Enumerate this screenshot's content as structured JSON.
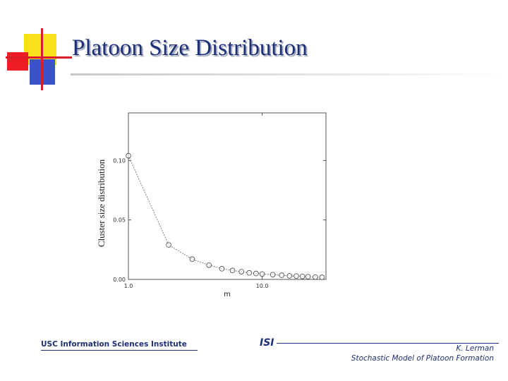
{
  "slide": {
    "title": "Platoon Size Distribution"
  },
  "footer": {
    "institute": "USC Information Sciences Institute",
    "logo": "ISI",
    "author": "K. Lerman",
    "talk_title": "Stochastic Model of Platoon Formation"
  },
  "colors": {
    "title": "#1c2f78",
    "accent_red": "#d81e28",
    "accent_yellow": "#f7e11e",
    "accent_blue": "#3a53c8"
  },
  "chart_data": {
    "type": "line",
    "xlabel": "m",
    "ylabel": "Cluster size distribution",
    "x_scale": "log",
    "xlim": [
      1,
      30
    ],
    "ylim": [
      0,
      0.14
    ],
    "x_ticks": [
      {
        "value": 1,
        "label": "1.0"
      },
      {
        "value": 10,
        "label": "10.0"
      }
    ],
    "y_ticks": [
      {
        "value": 0,
        "label": "0.00"
      },
      {
        "value": 0.05,
        "label": "0.05"
      },
      {
        "value": 0.1,
        "label": "0.10"
      }
    ],
    "grid": false,
    "marker": "circle",
    "series": [
      {
        "x": [
          1,
          2,
          3,
          4,
          5,
          6,
          7,
          8,
          9,
          10,
          12,
          14,
          16,
          18,
          20,
          22,
          25,
          28
        ],
        "values": [
          0.104,
          0.029,
          0.017,
          0.012,
          0.009,
          0.0075,
          0.0065,
          0.0055,
          0.005,
          0.0045,
          0.004,
          0.0035,
          0.003,
          0.0028,
          0.0025,
          0.0023,
          0.002,
          0.0018
        ]
      }
    ]
  }
}
